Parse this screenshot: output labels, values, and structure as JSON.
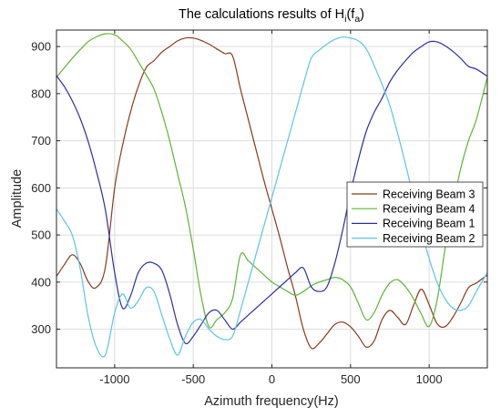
{
  "chart_data": {
    "type": "line",
    "title": {
      "prefix": "The calculations results of H",
      "sub1": "i",
      "mid": "(f",
      "sub2": "a",
      "suffix": ")"
    },
    "xlabel": "Azimuth frequency(Hz)",
    "ylabel": "Amplitude",
    "xlim": [
      -1370,
      1370
    ],
    "ylim": [
      218,
      935
    ],
    "x_ticks": [
      -1000,
      -500,
      0,
      500,
      1000
    ],
    "x_tick_labels": [
      "-1000",
      "-500",
      "0",
      "500",
      "1000"
    ],
    "y_ticks": [
      300,
      400,
      500,
      600,
      700,
      800,
      900
    ],
    "y_tick_labels": [
      "300",
      "400",
      "500",
      "600",
      "700",
      "800",
      "900"
    ],
    "grid": true,
    "legend_position": "right",
    "series": [
      {
        "name": "Receiving Beam 3",
        "color": "#8B3A1A",
        "x": [
          -1370,
          -1320,
          -1270,
          -1220,
          -1170,
          -1120,
          -1060,
          -1000,
          -950,
          -900,
          -850,
          -800,
          -750,
          -700,
          -650,
          -600,
          -550,
          -500,
          -450,
          -400,
          -350,
          -300,
          -250,
          -200,
          -150,
          -100,
          -50,
          0,
          50,
          100,
          150,
          200,
          250,
          300,
          350,
          400,
          450,
          500,
          550,
          600,
          650,
          700,
          750,
          800,
          850,
          900,
          950,
          1000,
          1050,
          1100,
          1150,
          1200,
          1250,
          1300,
          1370
        ],
        "y": [
          412,
          437,
          458,
          440,
          402,
          388,
          430,
          600,
          690,
          760,
          815,
          855,
          870,
          888,
          900,
          912,
          918,
          918,
          913,
          905,
          895,
          885,
          880,
          810,
          745,
          680,
          615,
          555,
          495,
          430,
          370,
          300,
          260,
          270,
          290,
          310,
          315,
          305,
          285,
          262,
          275,
          320,
          340,
          325,
          310,
          350,
          385,
          352,
          312,
          305,
          325,
          355,
          388,
          398,
          415
        ]
      },
      {
        "name": "Receiving Beam 4",
        "color": "#5DB534",
        "x": [
          -1370,
          -1320,
          -1270,
          -1220,
          -1170,
          -1120,
          -1060,
          -1000,
          -950,
          -900,
          -850,
          -800,
          -750,
          -700,
          -650,
          -600,
          -550,
          -500,
          -450,
          -400,
          -350,
          -300,
          -250,
          -200,
          -150,
          -100,
          -50,
          0,
          50,
          100,
          150,
          200,
          250,
          300,
          350,
          400,
          450,
          500,
          550,
          600,
          650,
          700,
          750,
          800,
          850,
          900,
          950,
          1000,
          1050,
          1100,
          1150,
          1200,
          1250,
          1300,
          1370
        ],
        "y": [
          835,
          855,
          875,
          893,
          910,
          920,
          927,
          925,
          912,
          895,
          868,
          840,
          810,
          760,
          700,
          630,
          560,
          470,
          370,
          305,
          320,
          335,
          365,
          458,
          445,
          430,
          415,
          400,
          390,
          380,
          372,
          380,
          392,
          400,
          405,
          410,
          405,
          390,
          355,
          320,
          335,
          372,
          398,
          405,
          390,
          365,
          332,
          306,
          360,
          468,
          560,
          640,
          700,
          745,
          835
        ]
      },
      {
        "name": "Receiving Beam 1",
        "color": "#2E2EA0",
        "x": [
          -1370,
          -1320,
          -1270,
          -1220,
          -1170,
          -1120,
          -1060,
          -1000,
          -950,
          -900,
          -850,
          -800,
          -750,
          -700,
          -650,
          -600,
          -550,
          -500,
          -450,
          -400,
          -350,
          -300,
          -250,
          -200,
          -150,
          -100,
          -50,
          0,
          50,
          100,
          150,
          200,
          250,
          300,
          350,
          400,
          450,
          500,
          550,
          600,
          650,
          700,
          750,
          800,
          850,
          900,
          950,
          1000,
          1050,
          1100,
          1150,
          1200,
          1250,
          1300,
          1370
        ],
        "y": [
          838,
          815,
          785,
          748,
          700,
          640,
          555,
          420,
          345,
          370,
          420,
          440,
          440,
          425,
          375,
          310,
          270,
          285,
          310,
          335,
          340,
          320,
          300,
          315,
          330,
          345,
          360,
          375,
          390,
          405,
          420,
          430,
          390,
          380,
          390,
          440,
          510,
          590,
          660,
          720,
          760,
          790,
          825,
          850,
          870,
          888,
          900,
          910,
          910,
          902,
          890,
          875,
          858,
          852,
          837
        ]
      },
      {
        "name": "Receiving Beam 2",
        "color": "#5BC4E8",
        "x": [
          -1370,
          -1320,
          -1270,
          -1220,
          -1170,
          -1120,
          -1060,
          -1000,
          -950,
          -900,
          -850,
          -800,
          -750,
          -700,
          -650,
          -600,
          -550,
          -500,
          -450,
          -400,
          -350,
          -300,
          -250,
          -200,
          -150,
          -100,
          -50,
          0,
          50,
          100,
          150,
          200,
          250,
          300,
          350,
          400,
          450,
          500,
          550,
          600,
          650,
          700,
          750,
          800,
          850,
          900,
          950,
          1000,
          1050,
          1100,
          1150,
          1200,
          1250,
          1300,
          1370
        ],
        "y": [
          555,
          530,
          500,
          430,
          330,
          265,
          245,
          335,
          375,
          345,
          360,
          388,
          380,
          330,
          280,
          245,
          285,
          315,
          320,
          300,
          285,
          278,
          285,
          340,
          400,
          460,
          520,
          580,
          640,
          700,
          760,
          820,
          875,
          892,
          905,
          915,
          920,
          918,
          912,
          895,
          860,
          820,
          775,
          715,
          650,
          580,
          510,
          450,
          400,
          365,
          345,
          340,
          350,
          380,
          420
        ]
      }
    ]
  }
}
